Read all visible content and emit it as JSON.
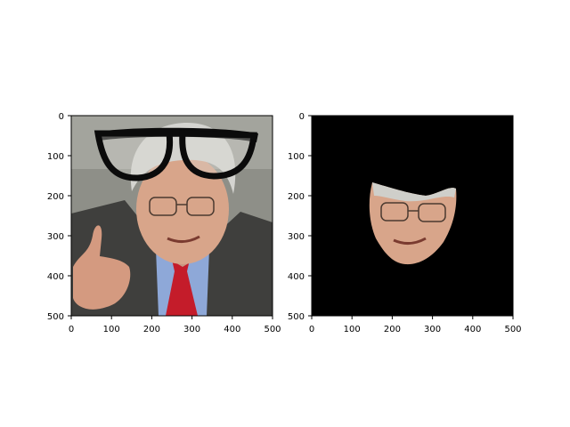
{
  "figure": {
    "panels": [
      {
        "image_desc": "photo-glasses-overlay"
      },
      {
        "image_desc": "masked-face-black-background"
      }
    ]
  },
  "colors": {
    "background_mask": "#000000",
    "photo_backdrop": "#8e8f88",
    "jacket": "#3f3f3d",
    "shirt": "#8ea8d8",
    "tie": "#c41c2a",
    "skin": "#d8a58a",
    "hair": "#d4d4d0",
    "glasses": "#0b0b0b"
  },
  "chart_data": [
    {
      "type": "image",
      "title": "",
      "xlabel": "",
      "ylabel": "",
      "xlim": [
        0,
        500
      ],
      "ylim": [
        500,
        0
      ],
      "xticks": [
        0,
        100,
        200,
        300,
        400,
        500
      ],
      "yticks": [
        0,
        100,
        200,
        300,
        400,
        500
      ],
      "xtick_labels": [
        "0",
        "100",
        "200",
        "300",
        "400",
        "500"
      ],
      "ytick_labels": [
        "0",
        "100",
        "200",
        "300",
        "400",
        "500"
      ],
      "grid": false
    },
    {
      "type": "image",
      "title": "",
      "xlabel": "",
      "ylabel": "",
      "xlim": [
        0,
        500
      ],
      "ylim": [
        500,
        0
      ],
      "xticks": [
        0,
        100,
        200,
        300,
        400,
        500
      ],
      "yticks": [
        0,
        100,
        200,
        300,
        400,
        500
      ],
      "xtick_labels": [
        "0",
        "100",
        "200",
        "300",
        "400",
        "500"
      ],
      "ytick_labels": [
        "0",
        "100",
        "200",
        "300",
        "400",
        "500"
      ],
      "grid": false
    }
  ]
}
